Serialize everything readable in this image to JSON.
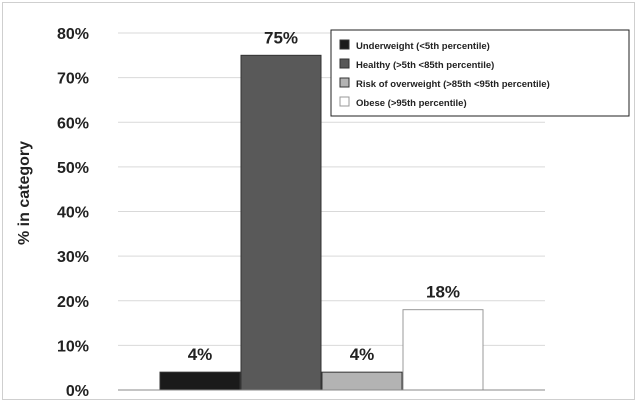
{
  "chart_data": {
    "type": "bar",
    "title": "",
    "xlabel": "",
    "ylabel": "% in category",
    "ylim": [
      0,
      80
    ],
    "yticks": [
      0,
      10,
      20,
      30,
      40,
      50,
      60,
      70,
      80
    ],
    "ytick_labels": [
      "0%",
      "10%",
      "20%",
      "30%",
      "40%",
      "50%",
      "60%",
      "70%",
      "80%"
    ],
    "grid": true,
    "legend_position": "top-right",
    "series": [
      {
        "name": "Underweight (<5th percentile)",
        "value": 4,
        "label": "4%",
        "color": "#1a1a1a"
      },
      {
        "name": "Healthy (>5th <85th percentile)",
        "value": 75,
        "label": "75%",
        "color": "#595959"
      },
      {
        "name": "Risk of overweight (>85th <95th percentile)",
        "value": 4,
        "label": "4%",
        "color": "#b3b3b3"
      },
      {
        "name": "Obese (>95th percentile)",
        "value": 18,
        "label": "18%",
        "color": "#ffffff"
      }
    ]
  }
}
